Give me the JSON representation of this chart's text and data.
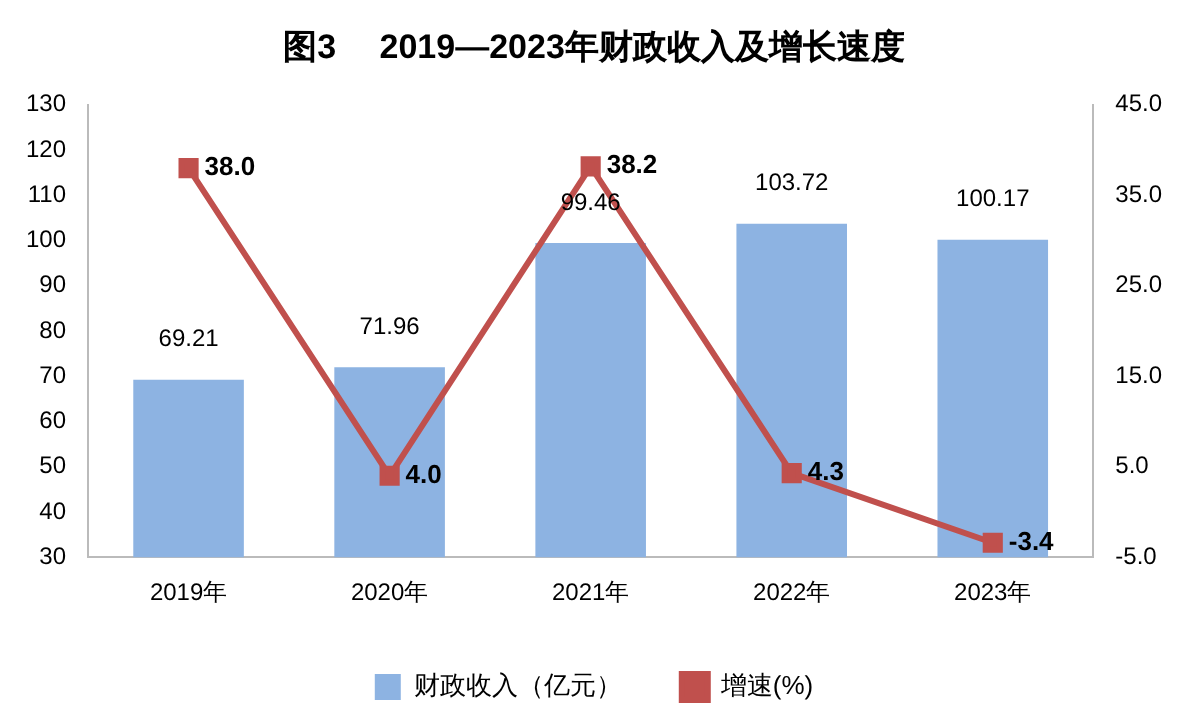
{
  "chart_data": {
    "type": "bar",
    "title": "图3　 2019—2023年财政收入及增长速度",
    "categories": [
      "2019年",
      "2020年",
      "2021年",
      "2022年",
      "2023年"
    ],
    "series": [
      {
        "name": "财政收入（亿元）",
        "color": "#8db3e2",
        "values": [
          69.21,
          71.96,
          99.46,
          103.72,
          100.17
        ],
        "value_labels": [
          "69.21",
          "71.96",
          "99.46",
          "103.72",
          "100.17"
        ]
      },
      {
        "name": "增速(%)",
        "type": "line",
        "axis": "y2",
        "color": "#c0504d",
        "marker": "square",
        "values": [
          38.0,
          4.0,
          38.2,
          4.3,
          -3.4
        ],
        "value_labels": [
          "38.0",
          "4.0",
          "38.2",
          "4.3",
          "-3.4"
        ]
      }
    ],
    "ylim": [
      30,
      130
    ],
    "yticks": [
      30,
      40,
      50,
      60,
      70,
      80,
      90,
      100,
      110,
      120,
      130
    ],
    "y2lim": [
      -5,
      45
    ],
    "y2ticks": [
      {
        "value": -5,
        "label": "-5.0"
      },
      {
        "value": 5,
        "label": "5.0"
      },
      {
        "value": 15,
        "label": "15.0"
      },
      {
        "value": 25,
        "label": "25.0"
      },
      {
        "value": 35,
        "label": "35.0"
      },
      {
        "value": 45,
        "label": "45.0"
      }
    ],
    "grid": false,
    "legend": "bottom"
  }
}
